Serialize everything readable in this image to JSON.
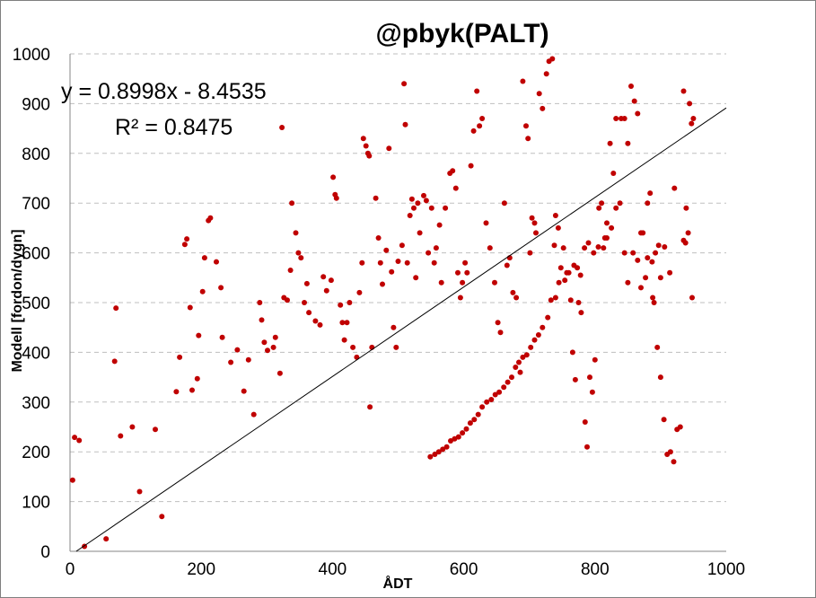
{
  "chart_data": {
    "type": "scatter",
    "title": "@pbyk(PALT)",
    "xlabel": "ÅDT",
    "ylabel": "Modell [fordon/dygn]",
    "xlim": [
      0,
      1000
    ],
    "ylim": [
      0,
      1000
    ],
    "x_ticks": [
      "0",
      "200",
      "400",
      "600",
      "800",
      "1000"
    ],
    "y_ticks": [
      "0",
      "100",
      "200",
      "300",
      "400",
      "500",
      "600",
      "700",
      "800",
      "900",
      "1000"
    ],
    "grid": {
      "horizontal": true,
      "vertical": false
    },
    "legend": "none",
    "marker_color": "#c00000",
    "trendline": {
      "type": "linear",
      "slope": 0.8998,
      "intercept": -8.4535,
      "r_squared": 0.8475,
      "color": "#000000"
    },
    "annotations": [
      "y = 0.8998x - 8.4535",
      "R² = 0.8475"
    ],
    "points": [
      [
        4,
        143
      ],
      [
        7,
        229
      ],
      [
        14,
        223
      ],
      [
        22,
        10
      ],
      [
        55,
        25
      ],
      [
        70,
        489
      ],
      [
        68,
        382
      ],
      [
        77,
        232
      ],
      [
        95,
        250
      ],
      [
        106,
        120
      ],
      [
        130,
        245
      ],
      [
        140,
        70
      ],
      [
        162,
        321
      ],
      [
        167,
        390
      ],
      [
        175,
        617
      ],
      [
        178,
        628
      ],
      [
        183,
        490
      ],
      [
        186,
        324
      ],
      [
        194,
        347
      ],
      [
        196,
        434
      ],
      [
        202,
        522
      ],
      [
        205,
        590
      ],
      [
        211,
        665
      ],
      [
        214,
        670
      ],
      [
        223,
        582
      ],
      [
        230,
        530
      ],
      [
        232,
        430
      ],
      [
        245,
        380
      ],
      [
        255,
        405
      ],
      [
        265,
        322
      ],
      [
        272,
        385
      ],
      [
        280,
        275
      ],
      [
        289,
        500
      ],
      [
        292,
        465
      ],
      [
        296,
        420
      ],
      [
        301,
        404
      ],
      [
        310,
        410
      ],
      [
        313,
        430
      ],
      [
        320,
        358
      ],
      [
        323,
        852
      ],
      [
        326,
        510
      ],
      [
        331,
        505
      ],
      [
        336,
        565
      ],
      [
        338,
        700
      ],
      [
        344,
        640
      ],
      [
        348,
        600
      ],
      [
        352,
        590
      ],
      [
        357,
        500
      ],
      [
        361,
        538
      ],
      [
        364,
        480
      ],
      [
        374,
        463
      ],
      [
        381,
        455
      ],
      [
        386,
        552
      ],
      [
        391,
        524
      ],
      [
        398,
        545
      ],
      [
        401,
        752
      ],
      [
        404,
        717
      ],
      [
        406,
        710
      ],
      [
        412,
        495
      ],
      [
        415,
        460
      ],
      [
        418,
        425
      ],
      [
        422,
        460
      ],
      [
        426,
        500
      ],
      [
        431,
        410
      ],
      [
        437,
        390
      ],
      [
        441,
        520
      ],
      [
        445,
        580
      ],
      [
        447,
        830
      ],
      [
        451,
        815
      ],
      [
        454,
        800
      ],
      [
        456,
        795
      ],
      [
        457,
        290
      ],
      [
        460,
        410
      ],
      [
        466,
        710
      ],
      [
        470,
        630
      ],
      [
        473,
        580
      ],
      [
        476,
        537
      ],
      [
        482,
        605
      ],
      [
        486,
        810
      ],
      [
        490,
        562
      ],
      [
        493,
        450
      ],
      [
        497,
        410
      ],
      [
        500,
        583
      ],
      [
        506,
        615
      ],
      [
        509,
        940
      ],
      [
        511,
        858
      ],
      [
        514,
        580
      ],
      [
        518,
        675
      ],
      [
        521,
        708
      ],
      [
        524,
        690
      ],
      [
        527,
        550
      ],
      [
        530,
        700
      ],
      [
        533,
        640
      ],
      [
        539,
        715
      ],
      [
        543,
        705
      ],
      [
        546,
        600
      ],
      [
        551,
        690
      ],
      [
        555,
        580
      ],
      [
        558,
        610
      ],
      [
        563,
        656
      ],
      [
        566,
        540
      ],
      [
        572,
        690
      ],
      [
        579,
        760
      ],
      [
        583,
        765
      ],
      [
        588,
        730
      ],
      [
        591,
        560
      ],
      [
        595,
        510
      ],
      [
        598,
        540
      ],
      [
        602,
        580
      ],
      [
        605,
        560
      ],
      [
        611,
        775
      ],
      [
        615,
        845
      ],
      [
        620,
        925
      ],
      [
        624,
        855
      ],
      [
        628,
        870
      ],
      [
        634,
        660
      ],
      [
        640,
        610
      ],
      [
        647,
        540
      ],
      [
        652,
        460
      ],
      [
        656,
        440
      ],
      [
        662,
        700
      ],
      [
        666,
        575
      ],
      [
        670,
        590
      ],
      [
        675,
        520
      ],
      [
        680,
        510
      ],
      [
        686,
        360
      ],
      [
        690,
        945
      ],
      [
        695,
        855
      ],
      [
        698,
        830
      ],
      [
        701,
        600
      ],
      [
        704,
        670
      ],
      [
        708,
        660
      ],
      [
        710,
        640
      ],
      [
        715,
        920
      ],
      [
        720,
        890
      ],
      [
        726,
        960
      ],
      [
        730,
        985
      ],
      [
        735,
        990
      ],
      [
        738,
        615
      ],
      [
        740,
        675
      ],
      [
        744,
        650
      ],
      [
        748,
        570
      ],
      [
        752,
        610
      ],
      [
        757,
        560
      ],
      [
        763,
        505
      ],
      [
        766,
        400
      ],
      [
        770,
        345
      ],
      [
        775,
        500
      ],
      [
        779,
        480
      ],
      [
        785,
        260
      ],
      [
        788,
        210
      ],
      [
        792,
        350
      ],
      [
        796,
        320
      ],
      [
        800,
        385
      ],
      [
        806,
        690
      ],
      [
        810,
        700
      ],
      [
        815,
        630
      ],
      [
        818,
        660
      ],
      [
        823,
        820
      ],
      [
        828,
        760
      ],
      [
        832,
        870
      ],
      [
        840,
        870
      ],
      [
        845,
        870
      ],
      [
        850,
        820
      ],
      [
        855,
        935
      ],
      [
        860,
        905
      ],
      [
        865,
        880
      ],
      [
        870,
        640
      ],
      [
        873,
        640
      ],
      [
        877,
        550
      ],
      [
        880,
        700
      ],
      [
        884,
        720
      ],
      [
        888,
        510
      ],
      [
        890,
        500
      ],
      [
        895,
        410
      ],
      [
        900,
        350
      ],
      [
        905,
        265
      ],
      [
        910,
        195
      ],
      [
        915,
        200
      ],
      [
        920,
        180
      ],
      [
        925,
        245
      ],
      [
        930,
        250
      ],
      [
        935,
        925
      ],
      [
        938,
        620
      ],
      [
        942,
        640
      ],
      [
        944,
        900
      ],
      [
        947,
        860
      ],
      [
        950,
        870
      ],
      [
        948,
        510
      ],
      [
        939,
        690
      ],
      [
        935,
        625
      ],
      [
        921,
        730
      ],
      [
        914,
        560
      ],
      [
        906,
        612
      ],
      [
        900,
        550
      ],
      [
        897,
        615
      ],
      [
        892,
        600
      ],
      [
        887,
        582
      ],
      [
        880,
        590
      ],
      [
        870,
        530
      ],
      [
        865,
        585
      ],
      [
        858,
        600
      ],
      [
        850,
        540
      ],
      [
        845,
        600
      ],
      [
        838,
        700
      ],
      [
        832,
        690
      ],
      [
        825,
        650
      ],
      [
        818,
        630
      ],
      [
        813,
        610
      ],
      [
        805,
        612
      ],
      [
        798,
        600
      ],
      [
        790,
        620
      ],
      [
        784,
        610
      ],
      [
        778,
        555
      ],
      [
        773,
        570
      ],
      [
        768,
        575
      ],
      [
        760,
        560
      ],
      [
        754,
        545
      ],
      [
        745,
        540
      ],
      [
        740,
        510
      ],
      [
        733,
        505
      ],
      [
        728,
        470
      ],
      [
        720,
        450
      ],
      [
        714,
        435
      ],
      [
        708,
        425
      ],
      [
        702,
        410
      ],
      [
        696,
        395
      ],
      [
        690,
        390
      ],
      [
        684,
        380
      ],
      [
        679,
        370
      ],
      [
        673,
        350
      ],
      [
        667,
        340
      ],
      [
        661,
        330
      ],
      [
        654,
        320
      ],
      [
        648,
        315
      ],
      [
        642,
        305
      ],
      [
        635,
        300
      ],
      [
        628,
        290
      ],
      [
        622,
        275
      ],
      [
        616,
        265
      ],
      [
        610,
        258
      ],
      [
        604,
        246
      ],
      [
        598,
        238
      ],
      [
        592,
        230
      ],
      [
        586,
        226
      ],
      [
        580,
        222
      ],
      [
        574,
        210
      ],
      [
        568,
        205
      ],
      [
        562,
        200
      ],
      [
        556,
        195
      ],
      [
        549,
        190
      ]
    ]
  }
}
